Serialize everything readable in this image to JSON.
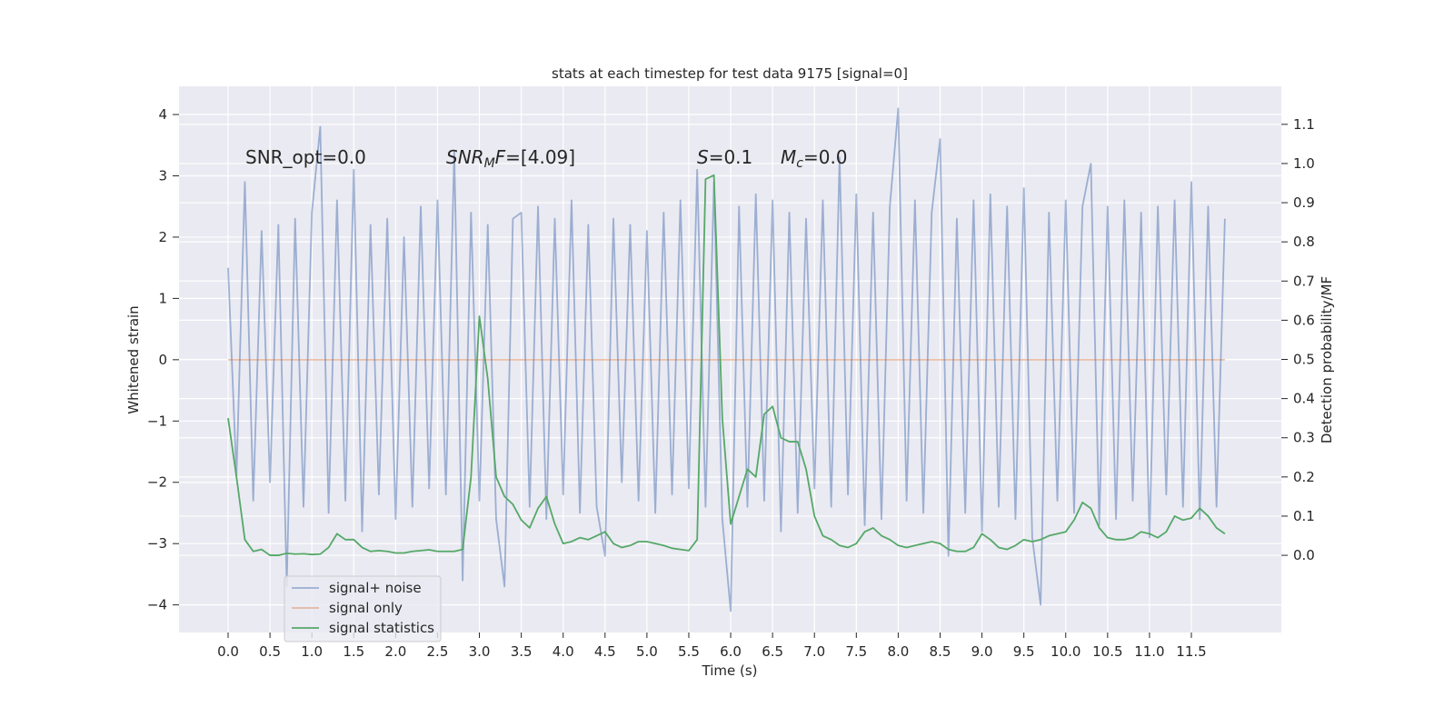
{
  "chart_data": {
    "type": "line",
    "title": "stats at each timestep for test data 9175 [signal=0]",
    "xlabel": "Time (s)",
    "ylabel": "Whitened strain",
    "y2label": "Detection probability/MF",
    "x": [
      0.0,
      0.1,
      0.2,
      0.3,
      0.4,
      0.5,
      0.6,
      0.7,
      0.8,
      0.9,
      1.0,
      1.1,
      1.2,
      1.3,
      1.4,
      1.5,
      1.6,
      1.7,
      1.8,
      1.9,
      2.0,
      2.1,
      2.2,
      2.3,
      2.4,
      2.5,
      2.6,
      2.7,
      2.8,
      2.9,
      3.0,
      3.1,
      3.2,
      3.3,
      3.4,
      3.5,
      3.6,
      3.7,
      3.8,
      3.9,
      4.0,
      4.1,
      4.2,
      4.3,
      4.4,
      4.5,
      4.6,
      4.7,
      4.8,
      4.9,
      5.0,
      5.1,
      5.2,
      5.3,
      5.4,
      5.5,
      5.6,
      5.7,
      5.8,
      5.9,
      6.0,
      6.1,
      6.2,
      6.3,
      6.4,
      6.5,
      6.6,
      6.7,
      6.8,
      6.9,
      7.0,
      7.1,
      7.2,
      7.3,
      7.4,
      7.5,
      7.6,
      7.7,
      7.8,
      7.9,
      8.0,
      8.1,
      8.2,
      8.3,
      8.4,
      8.5,
      8.6,
      8.7,
      8.8,
      8.9,
      9.0,
      9.1,
      9.2,
      9.3,
      9.4,
      9.5,
      9.6,
      9.7,
      9.8,
      9.9,
      10.0,
      10.1,
      10.2,
      10.3,
      10.4,
      10.5,
      10.6,
      10.7,
      10.8,
      10.9,
      11.0,
      11.1,
      11.2,
      11.3,
      11.4,
      11.5,
      11.6,
      11.7,
      11.8,
      11.9
    ],
    "series": [
      {
        "name": "signal only",
        "color": "#dd8452",
        "opacity": 0.5,
        "axis": "y",
        "values": [
          0,
          0,
          0,
          0,
          0,
          0,
          0,
          0,
          0,
          0,
          0,
          0,
          0,
          0,
          0,
          0,
          0,
          0,
          0,
          0,
          0,
          0,
          0,
          0,
          0,
          0,
          0,
          0,
          0,
          0,
          0,
          0,
          0,
          0,
          0,
          0,
          0,
          0,
          0,
          0,
          0,
          0,
          0,
          0,
          0,
          0,
          0,
          0,
          0,
          0,
          0,
          0,
          0,
          0,
          0,
          0,
          0,
          0,
          0,
          0,
          0,
          0,
          0,
          0,
          0,
          0,
          0,
          0,
          0,
          0,
          0,
          0,
          0,
          0,
          0,
          0,
          0,
          0,
          0,
          0,
          0,
          0,
          0,
          0,
          0,
          0,
          0,
          0,
          0,
          0,
          0,
          0,
          0,
          0,
          0,
          0,
          0,
          0,
          0,
          0,
          0,
          0,
          0,
          0,
          0,
          0,
          0,
          0,
          0,
          0,
          0,
          0,
          0,
          0,
          0,
          0,
          0,
          0,
          0,
          0
        ]
      },
      {
        "name": "signal+ noise",
        "color": "#4c72b0",
        "opacity": 0.5,
        "axis": "y",
        "values": [
          1.5,
          -1.9,
          2.9,
          -2.3,
          2.1,
          -2.0,
          2.2,
          -3.7,
          2.3,
          -2.4,
          2.4,
          3.8,
          -2.5,
          2.6,
          -2.3,
          3.1,
          -2.8,
          2.2,
          -2.2,
          2.3,
          -2.6,
          2.0,
          -2.4,
          2.5,
          -2.1,
          2.6,
          -2.2,
          3.4,
          -3.6,
          2.4,
          -2.3,
          2.2,
          -2.6,
          -3.7,
          2.3,
          2.4,
          -2.4,
          2.5,
          -2.6,
          2.3,
          -2.2,
          2.6,
          -2.5,
          2.2,
          -2.4,
          -3.2,
          2.3,
          -2.0,
          2.2,
          -2.3,
          2.1,
          -2.5,
          2.4,
          -2.2,
          2.6,
          -2.1,
          3.1,
          -2.4,
          2.9,
          -2.6,
          -4.1,
          2.5,
          -2.4,
          2.7,
          -2.3,
          2.6,
          -2.8,
          2.4,
          -2.5,
          2.3,
          -2.1,
          2.6,
          -2.4,
          3.3,
          -2.2,
          2.7,
          -2.7,
          2.4,
          -2.6,
          2.5,
          4.1,
          -2.3,
          2.6,
          -2.5,
          2.4,
          3.6,
          -3.2,
          2.3,
          -2.5,
          2.6,
          -2.8,
          2.7,
          -2.4,
          2.5,
          -2.6,
          2.8,
          -2.9,
          -4.0,
          2.4,
          -2.3,
          2.6,
          -2.5,
          2.5,
          3.2,
          -2.7,
          2.5,
          -2.6,
          2.6,
          -2.3,
          2.4,
          -2.9,
          2.5,
          -2.2,
          2.6,
          -2.4,
          2.9,
          -2.6,
          2.5,
          -2.4,
          2.3
        ]
      },
      {
        "name": "signal statistics",
        "color": "#55a868",
        "opacity": 1,
        "axis": "y2",
        "values": [
          0.35,
          0.2,
          0.04,
          0.01,
          0.015,
          0.0,
          0.0,
          0.005,
          0.003,
          0.004,
          0.002,
          0.003,
          0.02,
          0.055,
          0.04,
          0.04,
          0.02,
          0.01,
          0.012,
          0.01,
          0.006,
          0.006,
          0.01,
          0.012,
          0.014,
          0.01,
          0.01,
          0.01,
          0.015,
          0.2,
          0.61,
          0.45,
          0.2,
          0.15,
          0.13,
          0.09,
          0.07,
          0.12,
          0.15,
          0.08,
          0.03,
          0.035,
          0.045,
          0.04,
          0.05,
          0.06,
          0.03,
          0.02,
          0.025,
          0.035,
          0.035,
          0.03,
          0.025,
          0.018,
          0.015,
          0.012,
          0.04,
          0.96,
          0.97,
          0.35,
          0.08,
          0.15,
          0.22,
          0.2,
          0.36,
          0.38,
          0.3,
          0.29,
          0.29,
          0.22,
          0.1,
          0.05,
          0.04,
          0.025,
          0.02,
          0.03,
          0.06,
          0.07,
          0.05,
          0.04,
          0.025,
          0.02,
          0.025,
          0.03,
          0.035,
          0.03,
          0.015,
          0.01,
          0.01,
          0.02,
          0.055,
          0.04,
          0.02,
          0.015,
          0.025,
          0.04,
          0.035,
          0.04,
          0.05,
          0.055,
          0.06,
          0.09,
          0.135,
          0.12,
          0.07,
          0.045,
          0.04,
          0.04,
          0.045,
          0.06,
          0.055,
          0.045,
          0.06,
          0.1,
          0.09,
          0.095,
          0.12,
          0.1,
          0.07,
          0.055
        ]
      }
    ],
    "legend_order": [
      1,
      0,
      2
    ],
    "legend": "lower left",
    "grid": true,
    "xlim": [
      -0.586,
      12.574
    ],
    "xticks": [
      {
        "value": 0,
        "label": "0.0"
      },
      0.5,
      {
        "value": 1,
        "label": "1.0"
      },
      1.5,
      {
        "value": 2,
        "label": "2.0"
      },
      2.5,
      {
        "value": 3,
        "label": "3.0"
      },
      3.5,
      {
        "value": 4,
        "label": "4.0"
      },
      4.5,
      {
        "value": 5,
        "label": "5.0"
      },
      5.5,
      {
        "value": 6,
        "label": "6.0"
      },
      6.5,
      {
        "value": 7,
        "label": "7.0"
      },
      7.5,
      {
        "value": 8,
        "label": "8.0"
      },
      8.5,
      {
        "value": 9,
        "label": "9.0"
      },
      9.5,
      {
        "value": 10,
        "label": "10.0"
      },
      10.5,
      {
        "value": 11,
        "label": "11.0"
      },
      11.5
    ],
    "ylim": [
      -4.45,
      4.46
    ],
    "yticks": [
      {
        "value": -4,
        "label": "−4"
      },
      {
        "value": -3,
        "label": "−3"
      },
      {
        "value": -2,
        "label": "−2"
      },
      {
        "value": -1,
        "label": "−1"
      },
      0,
      1,
      2,
      3,
      4
    ],
    "y2lim": [
      -0.197,
      1.197
    ],
    "y2ticks": [
      {
        "value": 0,
        "label": "0.0"
      },
      0.1,
      0.2,
      0.3,
      0.4,
      0.5,
      0.6,
      0.7,
      0.8,
      0.9,
      {
        "value": 1,
        "label": "1.0"
      },
      1.1
    ],
    "annotations": [
      [
        {
          "text": "SNR_opt=0.0"
        }
      ],
      [
        {
          "text": "SNR",
          "italic": true
        },
        {
          "text": "M",
          "italic": true,
          "sub": true
        },
        {
          "text": "F",
          "italic": true
        },
        {
          "text": "=[4.09]"
        }
      ],
      [
        {
          "text": "S",
          "italic": true
        },
        {
          "text": "=0.1"
        }
      ],
      [
        {
          "text": "M",
          "italic": true
        },
        {
          "text": "c",
          "italic": true,
          "sub": true
        },
        {
          "text": "=0.0"
        }
      ]
    ]
  }
}
